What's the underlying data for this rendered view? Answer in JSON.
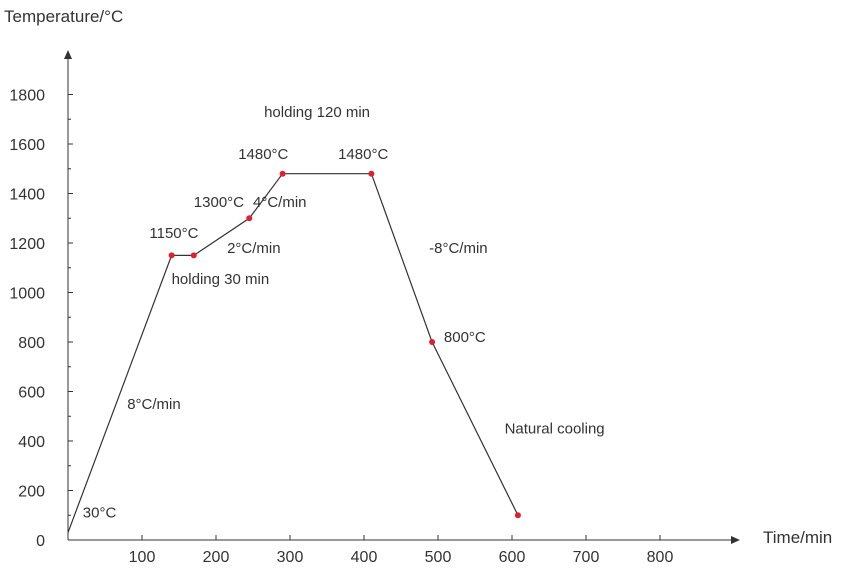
{
  "chart_data": {
    "type": "line",
    "title": "",
    "ylabel": "Temperature/°C",
    "xlabel": "Time/min",
    "xlim": [
      0,
      900
    ],
    "ylim": [
      0,
      1900
    ],
    "grid": false,
    "x_ticks": [
      100,
      200,
      300,
      400,
      500,
      600,
      700,
      800
    ],
    "y_ticks": [
      0,
      200,
      400,
      600,
      800,
      1000,
      1200,
      1400,
      1600,
      1800
    ],
    "series": [
      {
        "color": "#333333",
        "points": [
          {
            "x": 0,
            "y": 30
          },
          {
            "x": 140,
            "y": 1150
          },
          {
            "x": 170,
            "y": 1150
          },
          {
            "x": 245,
            "y": 1300
          },
          {
            "x": 290,
            "y": 1480
          },
          {
            "x": 410,
            "y": 1480
          },
          {
            "x": 492,
            "y": 800
          },
          {
            "x": 608,
            "y": 100
          }
        ]
      }
    ],
    "markers": [
      {
        "x": 140,
        "y": 1150
      },
      {
        "x": 170,
        "y": 1150
      },
      {
        "x": 245,
        "y": 1300
      },
      {
        "x": 290,
        "y": 1480
      },
      {
        "x": 410,
        "y": 1480
      },
      {
        "x": 492,
        "y": 800
      },
      {
        "x": 608,
        "y": 100
      }
    ],
    "marker_color": "#e0202a",
    "annotations": [
      {
        "text": "30°C",
        "x": 20,
        "y": 90
      },
      {
        "text": "8°C/min",
        "x": 80,
        "y": 530
      },
      {
        "text": "1150°C",
        "x": 110,
        "y": 1220
      },
      {
        "text": "holding 30 min",
        "x": 140,
        "y": 1035
      },
      {
        "text": "2°C/min",
        "x": 215,
        "y": 1160
      },
      {
        "text": "1300°C",
        "x": 170,
        "y": 1345
      },
      {
        "text": "4°C/min",
        "x": 250,
        "y": 1345
      },
      {
        "text": "1480°C",
        "x": 230,
        "y": 1540
      },
      {
        "text": "1480°C",
        "x": 365,
        "y": 1540
      },
      {
        "text": "holding  120 min",
        "x": 265,
        "y": 1710
      },
      {
        "text": "-8°C/min",
        "x": 488,
        "y": 1160
      },
      {
        "text": "800°C",
        "x": 508,
        "y": 800
      },
      {
        "text": "Natural cooling",
        "x": 590,
        "y": 430
      }
    ]
  }
}
